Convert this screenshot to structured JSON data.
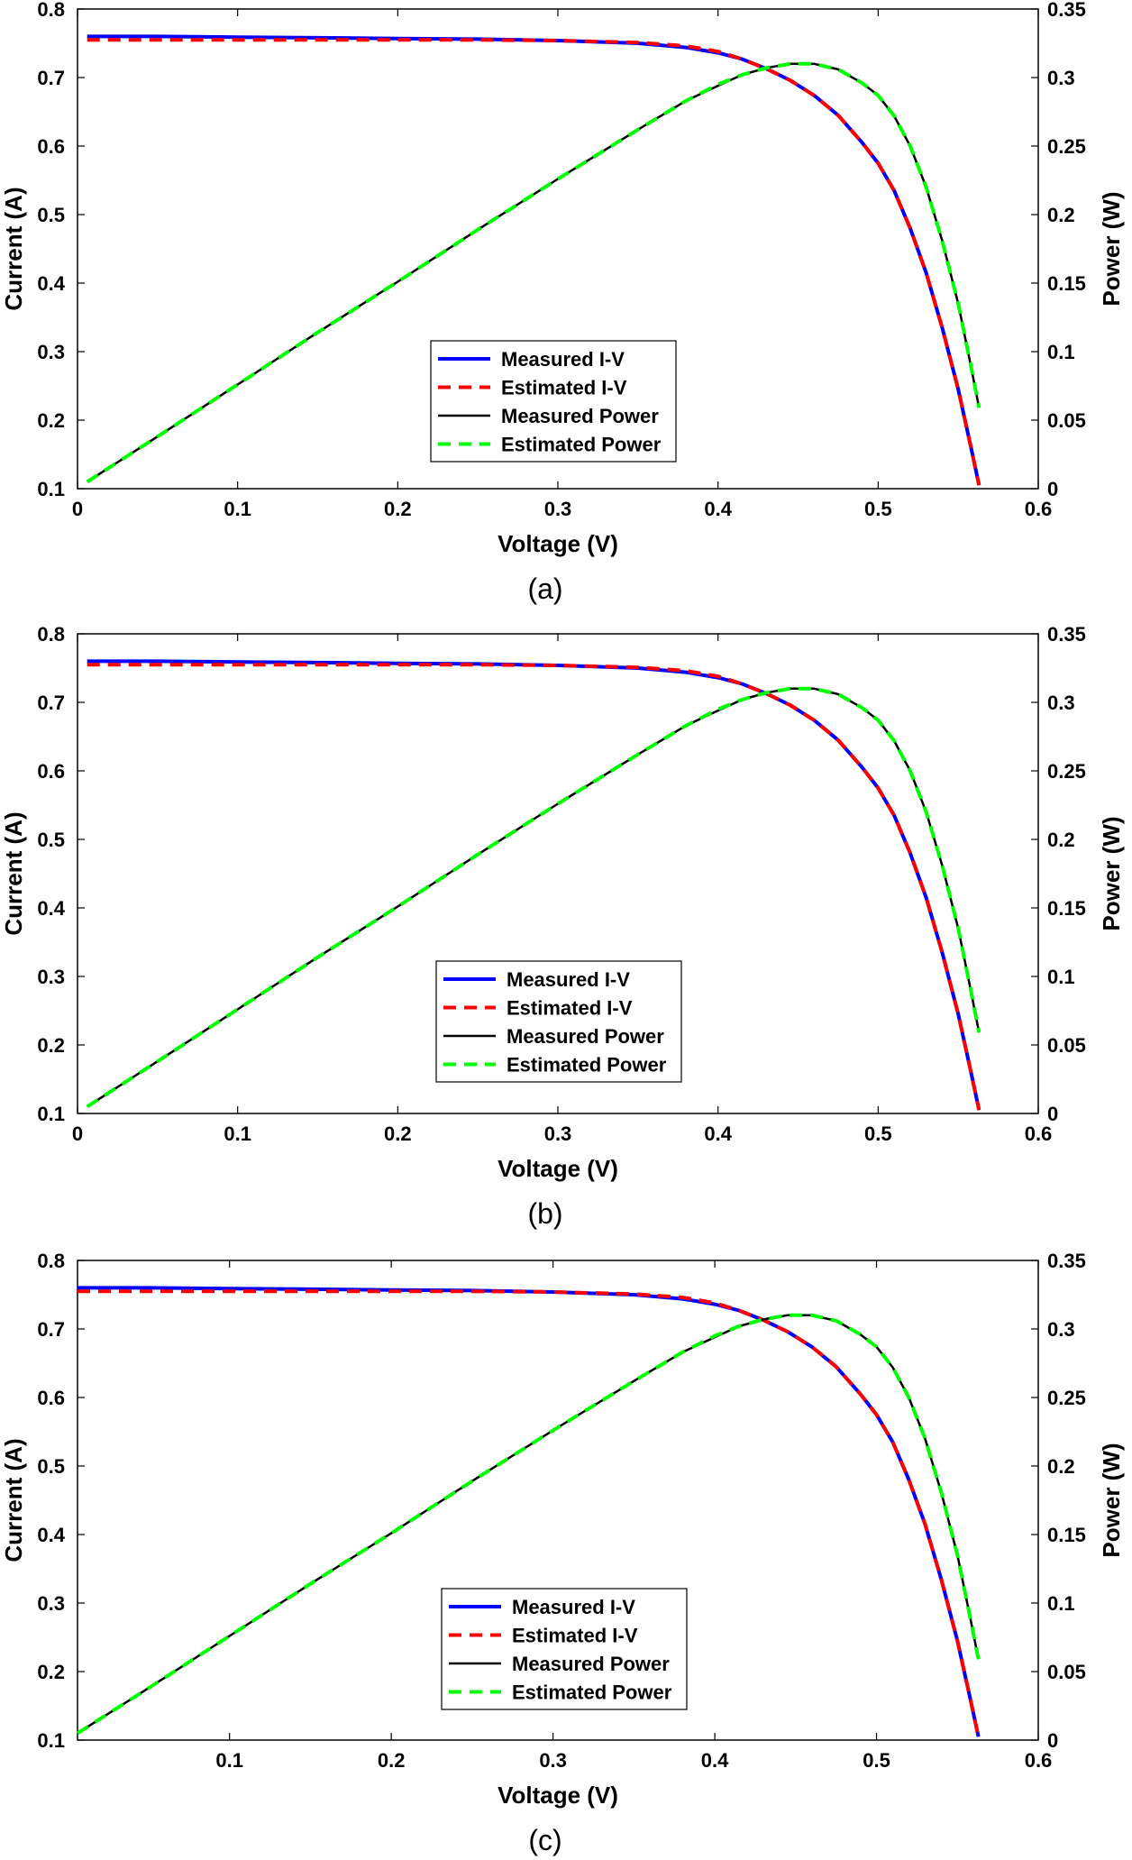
{
  "chart_data": [
    {
      "type": "line",
      "caption": "(a)",
      "xlabel": "Voltage (V)",
      "ylabel": "Current (A)",
      "y2label": "Power (W)",
      "xlim": [
        0,
        0.6
      ],
      "ylim": [
        0.1,
        0.8
      ],
      "y2lim": [
        0,
        0.35
      ],
      "xticks": [
        0,
        0.1,
        0.2,
        0.3,
        0.4,
        0.5,
        0.6
      ],
      "xtick_labels": [
        "0",
        "0.1",
        "0.2",
        "0.3",
        "0.4",
        "0.5",
        "0.6"
      ],
      "yticks": [
        0.1,
        0.2,
        0.3,
        0.4,
        0.5,
        0.6,
        0.7,
        0.8
      ],
      "ytick_labels": [
        "0.1",
        "0.2",
        "0.3",
        "0.4",
        "0.5",
        "0.6",
        "0.7",
        "0.8"
      ],
      "y2ticks": [
        0,
        0.05,
        0.1,
        0.15,
        0.2,
        0.25,
        0.3,
        0.35
      ],
      "y2tick_labels": [
        "0",
        "0.05",
        "0.1",
        "0.15",
        "0.2",
        "0.25",
        "0.3",
        "0.35"
      ],
      "legend_position": "center-bottom",
      "series": [
        {
          "name": "Measured I-V",
          "axis": "left",
          "color": "#0000ff",
          "dash": "solid",
          "width": 4,
          "x": [
            0.006,
            0.05,
            0.1,
            0.15,
            0.2,
            0.25,
            0.3,
            0.35,
            0.38,
            0.4,
            0.415,
            0.43,
            0.445,
            0.46,
            0.475,
            0.49,
            0.5,
            0.51,
            0.52,
            0.53,
            0.54,
            0.55,
            0.558,
            0.563
          ],
          "y": [
            0.76,
            0.76,
            0.759,
            0.758,
            0.757,
            0.756,
            0.754,
            0.75,
            0.744,
            0.736,
            0.727,
            0.713,
            0.696,
            0.674,
            0.645,
            0.605,
            0.575,
            0.535,
            0.48,
            0.415,
            0.335,
            0.245,
            0.16,
            0.105
          ]
        },
        {
          "name": "Estimated I-V",
          "axis": "left",
          "color": "#ff0000",
          "dash": "dashed",
          "width": 4,
          "x": [
            0.006,
            0.05,
            0.1,
            0.15,
            0.2,
            0.25,
            0.3,
            0.35,
            0.38,
            0.4,
            0.415,
            0.43,
            0.445,
            0.46,
            0.475,
            0.49,
            0.5,
            0.51,
            0.52,
            0.53,
            0.54,
            0.55,
            0.558,
            0.563
          ],
          "y": [
            0.755,
            0.755,
            0.755,
            0.755,
            0.755,
            0.755,
            0.754,
            0.751,
            0.746,
            0.738,
            0.727,
            0.713,
            0.696,
            0.674,
            0.645,
            0.605,
            0.575,
            0.535,
            0.48,
            0.415,
            0.335,
            0.245,
            0.16,
            0.105
          ]
        },
        {
          "name": "Measured Power",
          "axis": "right",
          "color": "#000000",
          "dash": "solid",
          "width": 2.5,
          "x": [
            0.006,
            0.05,
            0.1,
            0.15,
            0.2,
            0.25,
            0.3,
            0.35,
            0.38,
            0.4,
            0.415,
            0.43,
            0.445,
            0.46,
            0.475,
            0.49,
            0.5,
            0.51,
            0.52,
            0.53,
            0.54,
            0.55,
            0.558,
            0.563
          ],
          "y": [
            0.005,
            0.038,
            0.076,
            0.114,
            0.151,
            0.189,
            0.226,
            0.262,
            0.283,
            0.294,
            0.302,
            0.307,
            0.31,
            0.31,
            0.306,
            0.296,
            0.287,
            0.272,
            0.25,
            0.22,
            0.181,
            0.135,
            0.089,
            0.059
          ]
        },
        {
          "name": "Estimated Power",
          "axis": "right",
          "color": "#00ff00",
          "dash": "dashed",
          "width": 4,
          "x": [
            0.006,
            0.05,
            0.1,
            0.15,
            0.2,
            0.25,
            0.3,
            0.35,
            0.38,
            0.4,
            0.415,
            0.43,
            0.445,
            0.46,
            0.475,
            0.49,
            0.5,
            0.51,
            0.52,
            0.53,
            0.54,
            0.55,
            0.558,
            0.563
          ],
          "y": [
            0.005,
            0.038,
            0.076,
            0.114,
            0.151,
            0.189,
            0.226,
            0.262,
            0.283,
            0.295,
            0.302,
            0.307,
            0.31,
            0.31,
            0.306,
            0.296,
            0.287,
            0.272,
            0.25,
            0.22,
            0.181,
            0.135,
            0.089,
            0.059
          ]
        }
      ]
    },
    {
      "type": "line",
      "caption": "(b)",
      "xlabel": "Voltage (V)",
      "ylabel": "Current (A)",
      "y2label": "Power (W)",
      "xlim": [
        0,
        0.6
      ],
      "ylim": [
        0.1,
        0.8
      ],
      "y2lim": [
        0,
        0.35
      ],
      "xticks": [
        0,
        0.1,
        0.2,
        0.3,
        0.4,
        0.5,
        0.6
      ],
      "xtick_labels": [
        "0",
        "0.1",
        "0.2",
        "0.3",
        "0.4",
        "0.5",
        "0.6"
      ],
      "yticks": [
        0.1,
        0.2,
        0.3,
        0.4,
        0.5,
        0.6,
        0.7,
        0.8
      ],
      "ytick_labels": [
        "0.1",
        "0.2",
        "0.3",
        "0.4",
        "0.5",
        "0.6",
        "0.7",
        "0.8"
      ],
      "y2ticks": [
        0,
        0.05,
        0.1,
        0.15,
        0.2,
        0.25,
        0.3,
        0.35
      ],
      "y2tick_labels": [
        "0",
        "0.05",
        "0.1",
        "0.15",
        "0.2",
        "0.25",
        "0.3",
        "0.35"
      ],
      "legend_position": "center-bottom",
      "series": [
        {
          "name": "Measured I-V",
          "axis": "left",
          "color": "#0000ff",
          "dash": "solid",
          "width": 4,
          "x": [
            0.006,
            0.05,
            0.1,
            0.15,
            0.2,
            0.25,
            0.3,
            0.35,
            0.38,
            0.4,
            0.415,
            0.43,
            0.445,
            0.46,
            0.475,
            0.49,
            0.5,
            0.51,
            0.52,
            0.53,
            0.54,
            0.55,
            0.558,
            0.563
          ],
          "y": [
            0.76,
            0.76,
            0.759,
            0.758,
            0.757,
            0.756,
            0.754,
            0.75,
            0.744,
            0.736,
            0.727,
            0.713,
            0.696,
            0.674,
            0.645,
            0.605,
            0.575,
            0.535,
            0.48,
            0.415,
            0.335,
            0.245,
            0.16,
            0.105
          ]
        },
        {
          "name": "Estimated I-V",
          "axis": "left",
          "color": "#ff0000",
          "dash": "dashed",
          "width": 4,
          "x": [
            0.006,
            0.05,
            0.1,
            0.15,
            0.2,
            0.25,
            0.3,
            0.35,
            0.38,
            0.4,
            0.415,
            0.43,
            0.445,
            0.46,
            0.475,
            0.49,
            0.5,
            0.51,
            0.52,
            0.53,
            0.54,
            0.55,
            0.558,
            0.563
          ],
          "y": [
            0.755,
            0.755,
            0.755,
            0.755,
            0.755,
            0.755,
            0.754,
            0.751,
            0.746,
            0.738,
            0.727,
            0.713,
            0.696,
            0.674,
            0.645,
            0.605,
            0.575,
            0.535,
            0.48,
            0.415,
            0.335,
            0.245,
            0.16,
            0.105
          ]
        },
        {
          "name": "Measured Power",
          "axis": "right",
          "color": "#000000",
          "dash": "solid",
          "width": 2.5,
          "x": [
            0.006,
            0.05,
            0.1,
            0.15,
            0.2,
            0.25,
            0.3,
            0.35,
            0.38,
            0.4,
            0.415,
            0.43,
            0.445,
            0.46,
            0.475,
            0.49,
            0.5,
            0.51,
            0.52,
            0.53,
            0.54,
            0.55,
            0.558,
            0.563
          ],
          "y": [
            0.005,
            0.038,
            0.076,
            0.114,
            0.151,
            0.189,
            0.226,
            0.262,
            0.283,
            0.294,
            0.302,
            0.307,
            0.31,
            0.31,
            0.306,
            0.296,
            0.287,
            0.272,
            0.25,
            0.22,
            0.181,
            0.135,
            0.089,
            0.059
          ]
        },
        {
          "name": "Estimated Power",
          "axis": "right",
          "color": "#00ff00",
          "dash": "dashed",
          "width": 4,
          "x": [
            0.006,
            0.05,
            0.1,
            0.15,
            0.2,
            0.25,
            0.3,
            0.35,
            0.38,
            0.4,
            0.415,
            0.43,
            0.445,
            0.46,
            0.475,
            0.49,
            0.5,
            0.51,
            0.52,
            0.53,
            0.54,
            0.55,
            0.558,
            0.563
          ],
          "y": [
            0.005,
            0.038,
            0.076,
            0.114,
            0.151,
            0.189,
            0.226,
            0.262,
            0.283,
            0.295,
            0.302,
            0.307,
            0.31,
            0.31,
            0.306,
            0.296,
            0.287,
            0.272,
            0.25,
            0.22,
            0.181,
            0.135,
            0.089,
            0.059
          ]
        }
      ]
    },
    {
      "type": "line",
      "caption": "(c)",
      "xlabel": "Voltage (V)",
      "ylabel": "Current (A)",
      "y2label": "Power (W)",
      "xlim": [
        0.006,
        0.6
      ],
      "ylim": [
        0.1,
        0.8
      ],
      "y2lim": [
        0,
        0.35
      ],
      "xticks": [
        0.1,
        0.2,
        0.3,
        0.4,
        0.5,
        0.6
      ],
      "xtick_labels": [
        "0.1",
        "0.2",
        "0.3",
        "0.4",
        "0.5",
        "0.6"
      ],
      "yticks": [
        0.1,
        0.2,
        0.3,
        0.4,
        0.5,
        0.6,
        0.7,
        0.8
      ],
      "ytick_labels": [
        "0.1",
        "0.2",
        "0.3",
        "0.4",
        "0.5",
        "0.6",
        "0.7",
        "0.8"
      ],
      "y2ticks": [
        0,
        0.05,
        0.1,
        0.15,
        0.2,
        0.25,
        0.3,
        0.35
      ],
      "y2tick_labels": [
        "0",
        "0.05",
        "0.1",
        "0.15",
        "0.2",
        "0.25",
        "0.3",
        "0.35"
      ],
      "legend_position": "center-bottom",
      "series": [
        {
          "name": "Measured I-V",
          "axis": "left",
          "color": "#0000ff",
          "dash": "solid",
          "width": 4,
          "x": [
            0.006,
            0.05,
            0.1,
            0.15,
            0.2,
            0.25,
            0.3,
            0.35,
            0.38,
            0.4,
            0.415,
            0.43,
            0.445,
            0.46,
            0.475,
            0.49,
            0.5,
            0.51,
            0.52,
            0.53,
            0.54,
            0.55,
            0.558,
            0.563
          ],
          "y": [
            0.76,
            0.76,
            0.759,
            0.758,
            0.757,
            0.756,
            0.754,
            0.75,
            0.744,
            0.736,
            0.727,
            0.713,
            0.696,
            0.674,
            0.645,
            0.605,
            0.575,
            0.535,
            0.48,
            0.415,
            0.335,
            0.245,
            0.16,
            0.105
          ]
        },
        {
          "name": "Estimated I-V",
          "axis": "left",
          "color": "#ff0000",
          "dash": "dashed",
          "width": 4,
          "x": [
            0.006,
            0.05,
            0.1,
            0.15,
            0.2,
            0.25,
            0.3,
            0.35,
            0.38,
            0.4,
            0.415,
            0.43,
            0.445,
            0.46,
            0.475,
            0.49,
            0.5,
            0.51,
            0.52,
            0.53,
            0.54,
            0.55,
            0.558,
            0.563
          ],
          "y": [
            0.755,
            0.755,
            0.755,
            0.755,
            0.755,
            0.755,
            0.754,
            0.751,
            0.746,
            0.738,
            0.727,
            0.713,
            0.696,
            0.674,
            0.645,
            0.605,
            0.575,
            0.535,
            0.48,
            0.415,
            0.335,
            0.245,
            0.16,
            0.105
          ]
        },
        {
          "name": "Measured Power",
          "axis": "right",
          "color": "#000000",
          "dash": "solid",
          "width": 2.5,
          "x": [
            0.006,
            0.05,
            0.1,
            0.15,
            0.2,
            0.25,
            0.3,
            0.35,
            0.38,
            0.4,
            0.415,
            0.43,
            0.445,
            0.46,
            0.475,
            0.49,
            0.5,
            0.51,
            0.52,
            0.53,
            0.54,
            0.55,
            0.558,
            0.563
          ],
          "y": [
            0.005,
            0.038,
            0.076,
            0.114,
            0.151,
            0.189,
            0.226,
            0.262,
            0.283,
            0.294,
            0.302,
            0.307,
            0.31,
            0.31,
            0.306,
            0.296,
            0.287,
            0.272,
            0.25,
            0.22,
            0.181,
            0.135,
            0.089,
            0.059
          ]
        },
        {
          "name": "Estimated Power",
          "axis": "right",
          "color": "#00ff00",
          "dash": "dashed",
          "width": 4,
          "x": [
            0.006,
            0.05,
            0.1,
            0.15,
            0.2,
            0.25,
            0.3,
            0.35,
            0.38,
            0.4,
            0.415,
            0.43,
            0.445,
            0.46,
            0.475,
            0.49,
            0.5,
            0.51,
            0.52,
            0.53,
            0.54,
            0.55,
            0.558,
            0.563
          ],
          "y": [
            0.005,
            0.038,
            0.076,
            0.114,
            0.151,
            0.189,
            0.226,
            0.262,
            0.283,
            0.295,
            0.302,
            0.307,
            0.31,
            0.31,
            0.306,
            0.296,
            0.287,
            0.272,
            0.25,
            0.22,
            0.181,
            0.135,
            0.089,
            0.059
          ]
        }
      ]
    }
  ]
}
